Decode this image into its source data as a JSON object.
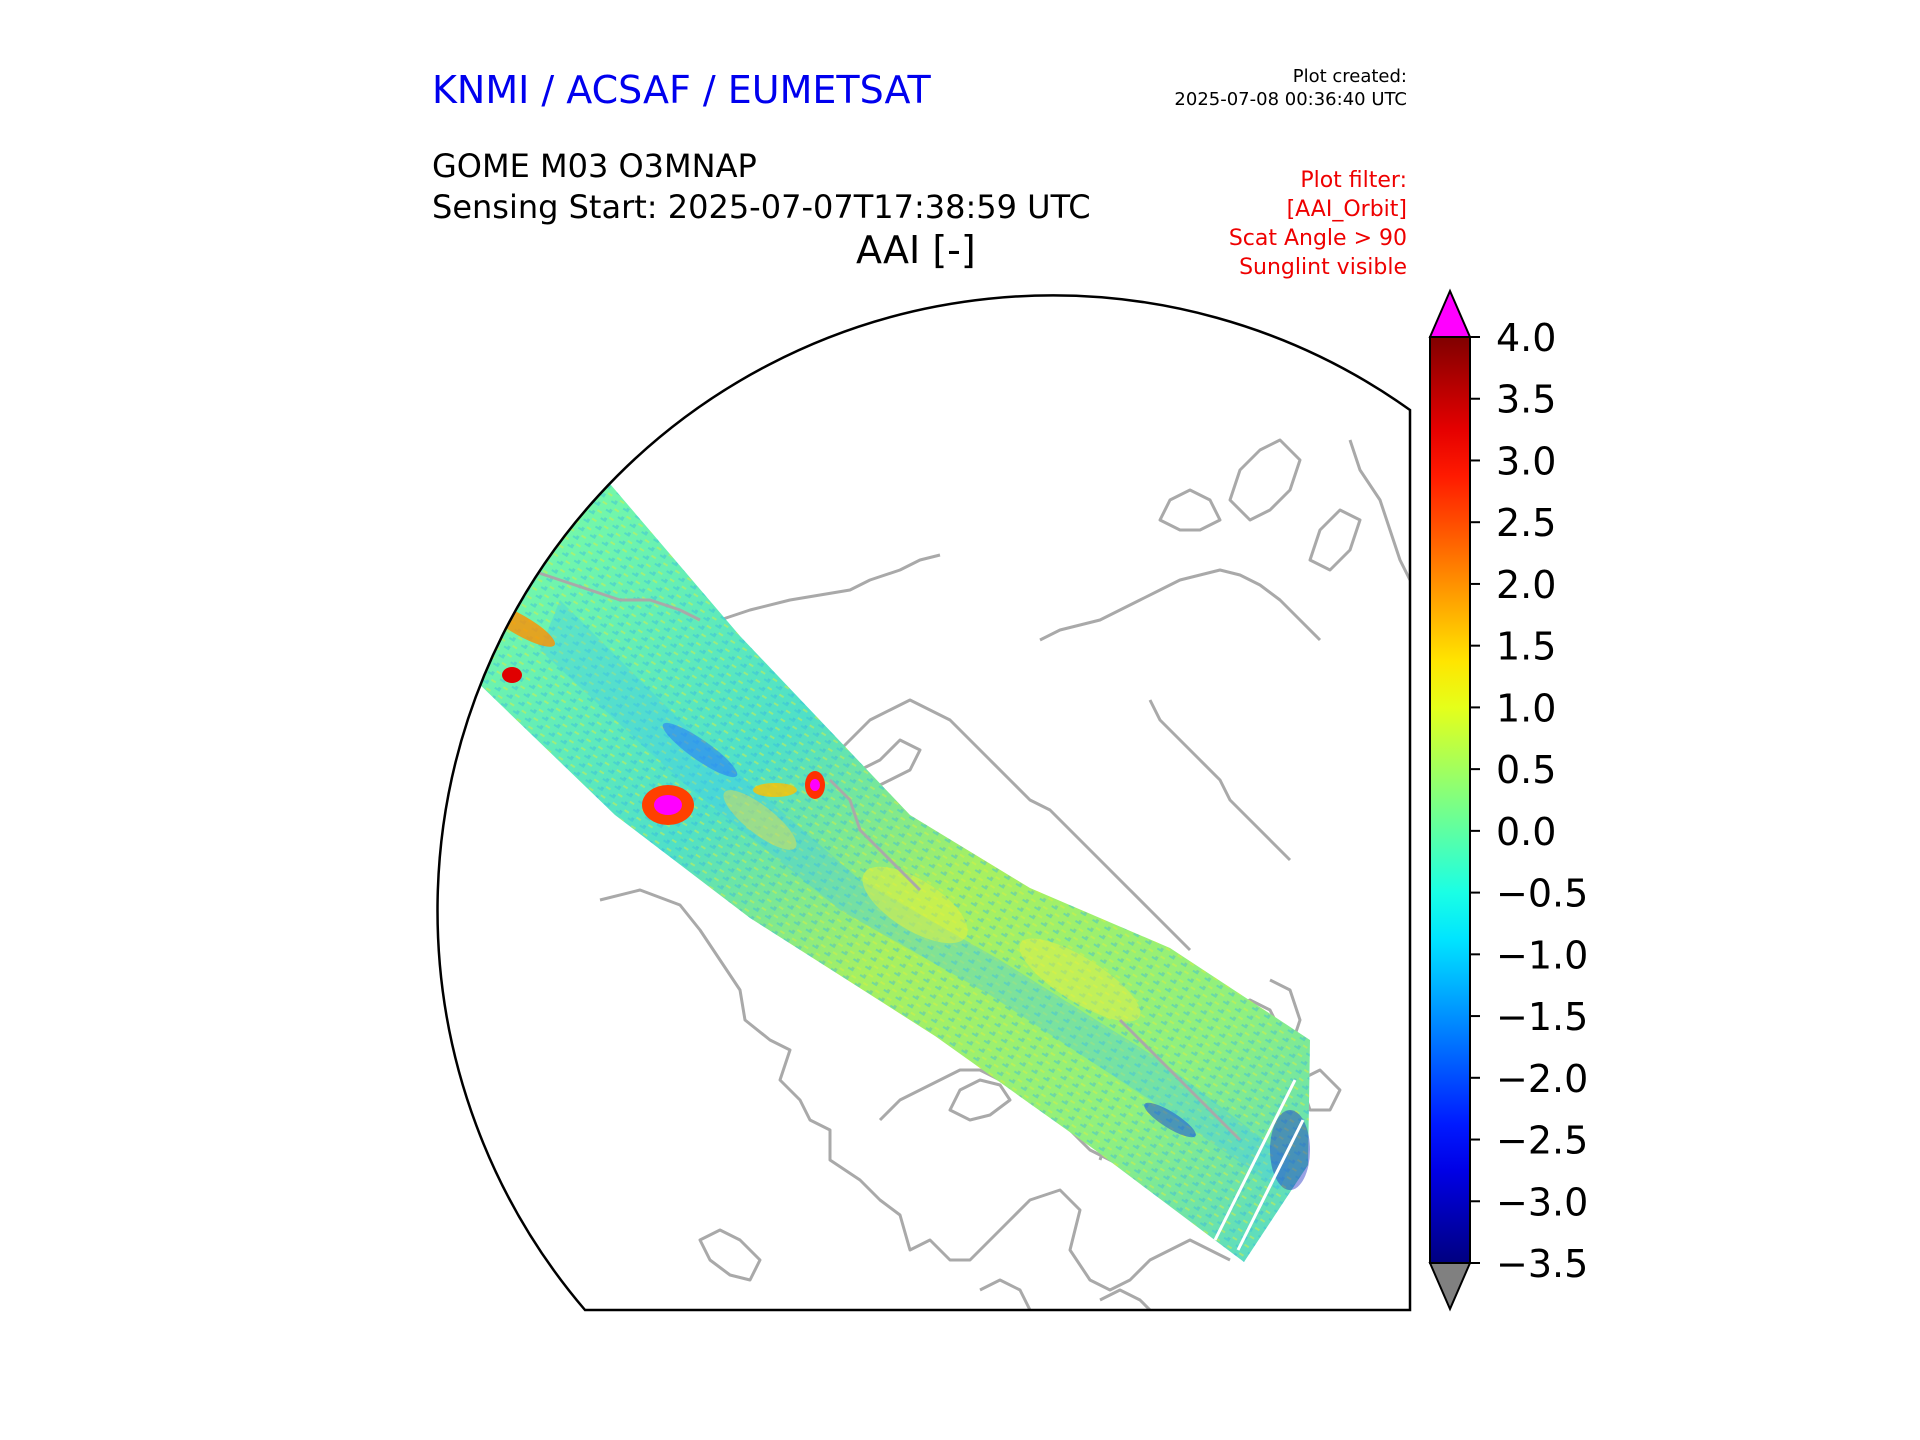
{
  "header": {
    "organisation": "KNMI / ACSAF / EUMETSAT",
    "organisation_color": "#0000ee",
    "plot_created_label": "Plot created:",
    "plot_created_value": "2025-07-08 00:36:40 UTC"
  },
  "titles": {
    "product": "GOME M03 O3MNAP",
    "sensing_start": "Sensing Start: 2025-07-07T17:38:59 UTC",
    "variable": "AAI [-]"
  },
  "filter": {
    "color": "#ee0000",
    "lines": [
      "Plot filter:",
      "[AAI_Orbit]",
      "Scat Angle > 90",
      "Sunglint visible"
    ]
  },
  "colorbar": {
    "colormap": "jet",
    "min": -3.5,
    "max": 4.0,
    "over_color": "#ff00ff",
    "under_color": "#808080",
    "tick_labels": [
      "4.0",
      "3.5",
      "3.0",
      "2.5",
      "2.0",
      "1.5",
      "1.0",
      "0.5",
      "0.0",
      "−0.5",
      "−1.0",
      "−1.5",
      "−2.0",
      "−2.5",
      "−3.0",
      "−3.5"
    ]
  },
  "map": {
    "projection": "north polar stereographic",
    "coastline_color": "#a9a9a9",
    "swath_description": "AAI orbit swath"
  }
}
